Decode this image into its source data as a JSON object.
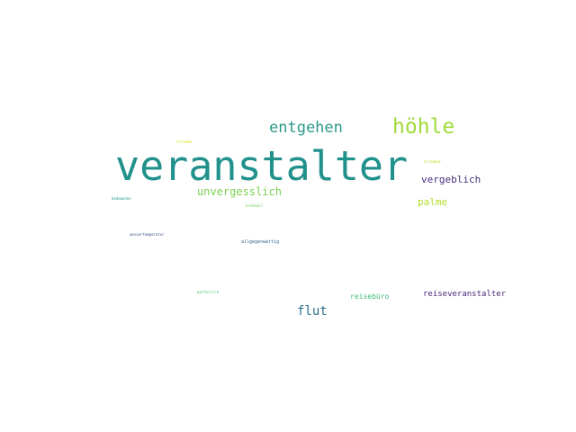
{
  "word_cloud": {
    "words": [
      {
        "text": "veranstalter",
        "color": "#21918c"
      },
      {
        "text": "höhle",
        "color": "#a0da39"
      },
      {
        "text": "entgehen",
        "color": "#2a9a89"
      },
      {
        "text": "unvergesslich",
        "color": "#7ad151"
      },
      {
        "text": "vergeblich",
        "color": "#46327e"
      },
      {
        "text": "palme",
        "color": "#b5de2b"
      },
      {
        "text": "flut",
        "color": "#2c718e"
      },
      {
        "text": "reiseveranstalter",
        "color": "#482878"
      },
      {
        "text": "reisebüro",
        "color": "#3bbb75"
      },
      {
        "text": "allgegenwärtig",
        "color": "#31688e"
      },
      {
        "text": "wassertemperatur",
        "color": "#3b528b"
      },
      {
        "text": "badewanne",
        "color": "#1fa187"
      },
      {
        "text": "krokodil",
        "color": "#6ece58"
      },
      {
        "text": "strände",
        "color": "#d8e219"
      },
      {
        "text": "erlebbar",
        "color": "#bddf26"
      },
      {
        "text": "parteilich",
        "color": "#4ac16d"
      }
    ]
  }
}
